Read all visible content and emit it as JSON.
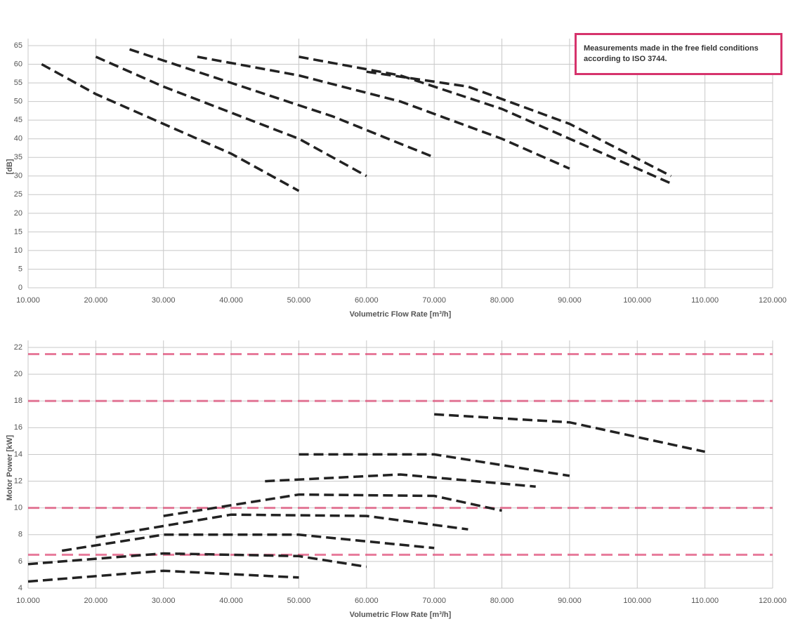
{
  "chart_data": [
    {
      "type": "line",
      "xlabel": "Volumetric Flow Rate [m³/h]",
      "ylabel": "[dB]",
      "note": "Measurements made in the free field conditions according to ISO 3744.",
      "xlim": [
        10000,
        120000
      ],
      "xticks": [
        {
          "value": 10000,
          "label": "10.000"
        },
        {
          "value": 20000,
          "label": "20.000"
        },
        {
          "value": 30000,
          "label": "30.000"
        },
        {
          "value": 40000,
          "label": "40.000"
        },
        {
          "value": 50000,
          "label": "50.000"
        },
        {
          "value": 60000,
          "label": "60.000"
        },
        {
          "value": 70000,
          "label": "70.000"
        },
        {
          "value": 80000,
          "label": "80.000"
        },
        {
          "value": 90000,
          "label": "90.000"
        },
        {
          "value": 100000,
          "label": "100.000"
        },
        {
          "value": 110000,
          "label": "110.000"
        },
        {
          "value": 120000,
          "label": "120.000"
        }
      ],
      "ylim": [
        0,
        65
      ],
      "yticks": [
        0,
        5,
        10,
        15,
        20,
        25,
        30,
        35,
        40,
        45,
        50,
        55,
        60,
        65
      ],
      "grid": true,
      "series": [
        {
          "color": "#222",
          "x": [
            12000,
            20000,
            30000,
            40000,
            50000
          ],
          "values": [
            60,
            52,
            44,
            36,
            26
          ]
        },
        {
          "color": "#222",
          "x": [
            20000,
            30000,
            40000,
            50000,
            60000
          ],
          "values": [
            62,
            54,
            47,
            40,
            30
          ]
        },
        {
          "color": "#222",
          "x": [
            25000,
            40000,
            55000,
            70000
          ],
          "values": [
            64,
            55,
            46,
            35
          ]
        },
        {
          "color": "#222",
          "x": [
            35000,
            50000,
            65000,
            80000,
            90000
          ],
          "values": [
            62,
            57,
            50,
            40,
            32
          ]
        },
        {
          "color": "#222",
          "x": [
            50000,
            65000,
            80000,
            95000,
            105000
          ],
          "values": [
            62,
            57,
            48,
            36,
            28
          ]
        },
        {
          "color": "#222",
          "x": [
            60000,
            75000,
            90000,
            105000
          ],
          "values": [
            58,
            54,
            44,
            30
          ]
        }
      ]
    },
    {
      "type": "line",
      "xlabel": "Volumetric Flow Rate [m³/h]",
      "ylabel": "Motor Power [kW]",
      "xlim": [
        10000,
        120000
      ],
      "xticks": [
        {
          "value": 10000,
          "label": "10.000"
        },
        {
          "value": 20000,
          "label": "20.000"
        },
        {
          "value": 30000,
          "label": "30.000"
        },
        {
          "value": 40000,
          "label": "40.000"
        },
        {
          "value": 50000,
          "label": "50.000"
        },
        {
          "value": 60000,
          "label": "60.000"
        },
        {
          "value": 70000,
          "label": "70.000"
        },
        {
          "value": 80000,
          "label": "80.000"
        },
        {
          "value": 90000,
          "label": "90.000"
        },
        {
          "value": 100000,
          "label": "100.000"
        },
        {
          "value": 110000,
          "label": "110.000"
        },
        {
          "value": 120000,
          "label": "120.000"
        }
      ],
      "ylim": [
        4,
        22
      ],
      "yticks": [
        4,
        6,
        8,
        10,
        12,
        14,
        16,
        18,
        20,
        22
      ],
      "grid": true,
      "reference_lines": [
        21.5,
        18,
        10,
        6.5
      ],
      "reference_color": "#e0507a",
      "series": [
        {
          "color": "#222",
          "x": [
            10000,
            30000,
            50000
          ],
          "values": [
            4.5,
            5.3,
            4.8
          ]
        },
        {
          "color": "#222",
          "x": [
            10000,
            30000,
            50000,
            60000
          ],
          "values": [
            5.8,
            6.6,
            6.4,
            5.6
          ]
        },
        {
          "color": "#222",
          "x": [
            15000,
            30000,
            50000,
            70000
          ],
          "values": [
            6.8,
            8,
            8,
            7
          ]
        },
        {
          "color": "#222",
          "x": [
            20000,
            40000,
            60000,
            75000
          ],
          "values": [
            7.8,
            9.5,
            9.4,
            8.4
          ]
        },
        {
          "color": "#222",
          "x": [
            30000,
            50000,
            70000,
            80000
          ],
          "values": [
            9.4,
            11,
            10.9,
            9.8
          ]
        },
        {
          "color": "#222",
          "x": [
            45000,
            65000,
            85000
          ],
          "values": [
            12,
            12.5,
            11.6
          ]
        },
        {
          "color": "#222",
          "x": [
            50000,
            70000,
            90000
          ],
          "values": [
            14,
            14,
            12.4
          ]
        },
        {
          "color": "#222",
          "x": [
            70000,
            90000,
            110000
          ],
          "values": [
            17,
            16.4,
            14.2
          ]
        }
      ]
    }
  ]
}
